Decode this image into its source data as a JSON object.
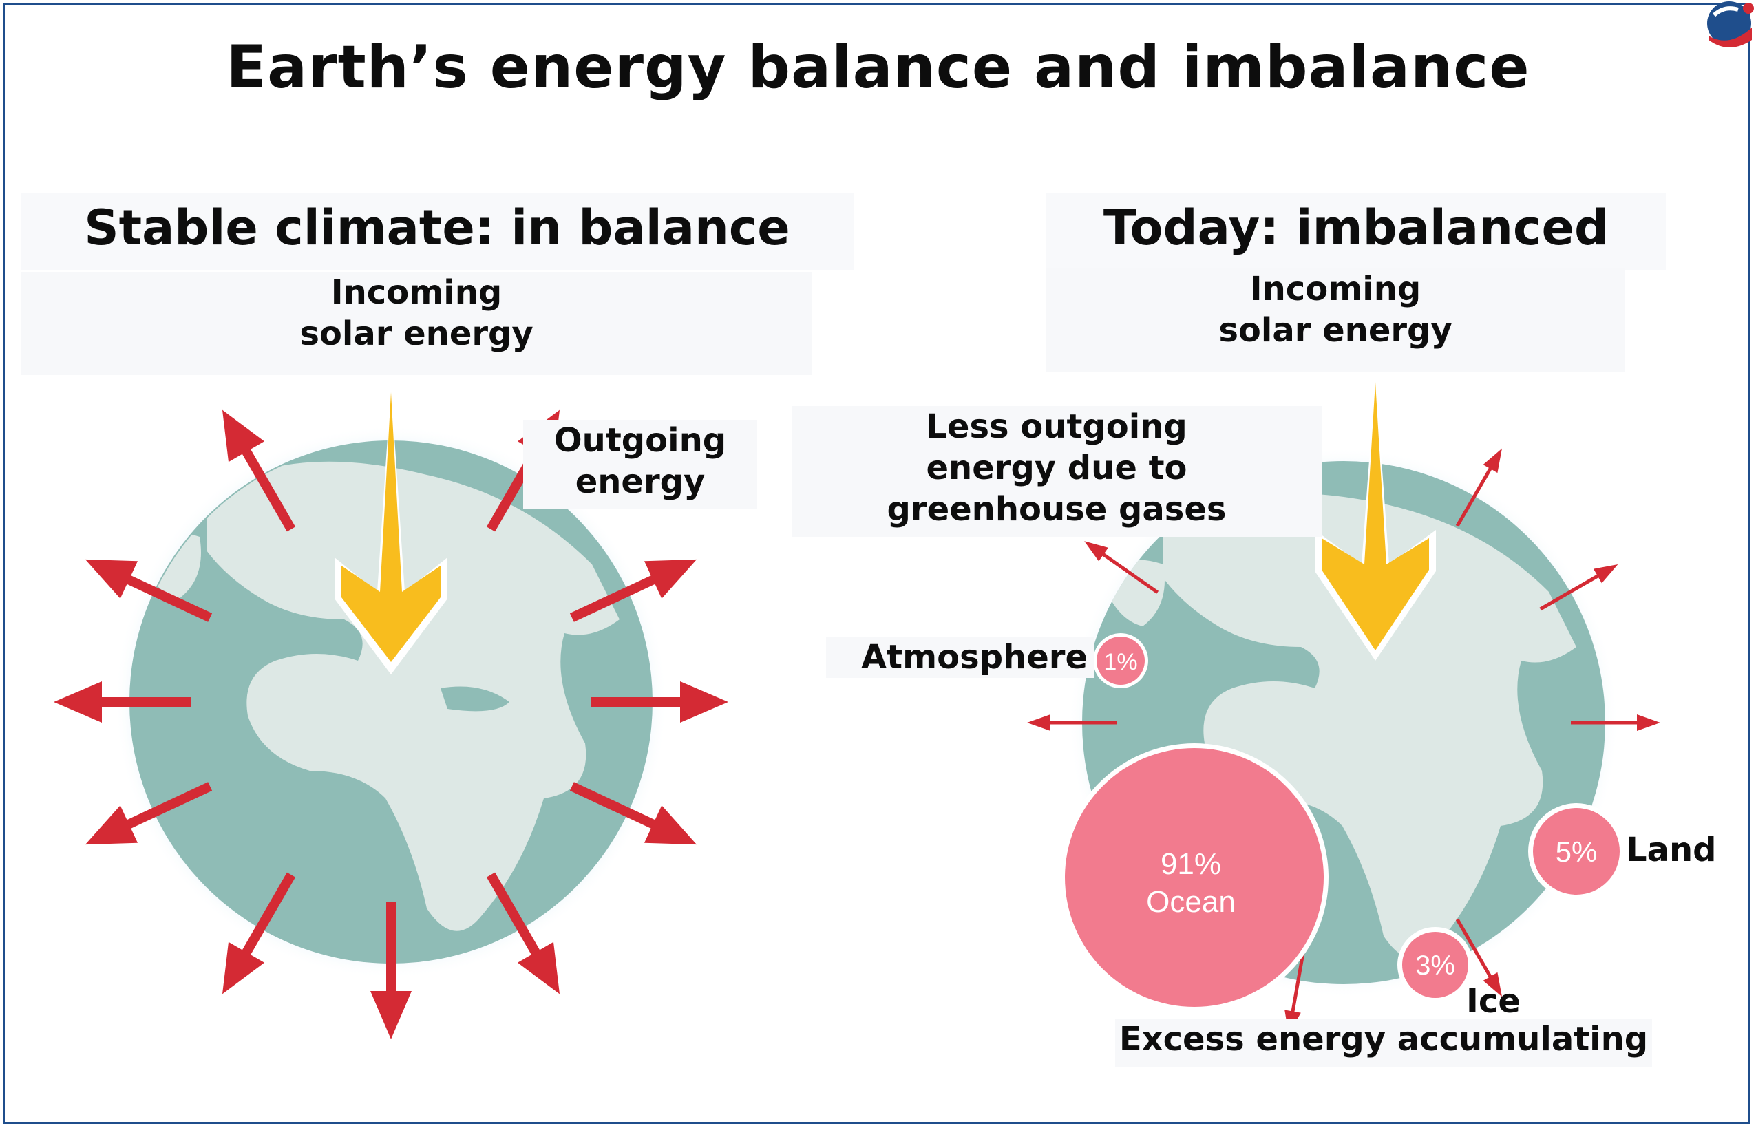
{
  "title": "Earth’s energy balance and imbalance",
  "left_panel": {
    "heading": "Stable climate: in balance",
    "incoming": "Incoming\nsolar energy",
    "outgoing": "Outgoing\nenergy"
  },
  "right_panel": {
    "heading": "Today: imbalanced",
    "incoming": "Incoming\nsolar energy",
    "less_outgoing": "Less outgoing\nenergy due to\ngreenhouse gases",
    "excess": "Excess energy accumulating",
    "reservoirs": [
      {
        "name": "Atmosphere",
        "percent": "1%"
      },
      {
        "name": "Ocean",
        "percent": "91%"
      },
      {
        "name": "Land",
        "percent": "5%"
      },
      {
        "name": "Ice",
        "percent": "3%"
      }
    ]
  },
  "colors": {
    "ocean": "#8fbcb6",
    "land": "#dde8e5",
    "glow": "#bfe0f0",
    "arrow_red": "#d42a34",
    "sun_arrow": "#f8bd1e",
    "bubble": "#f27b8e",
    "border": "#1f4e8c"
  }
}
